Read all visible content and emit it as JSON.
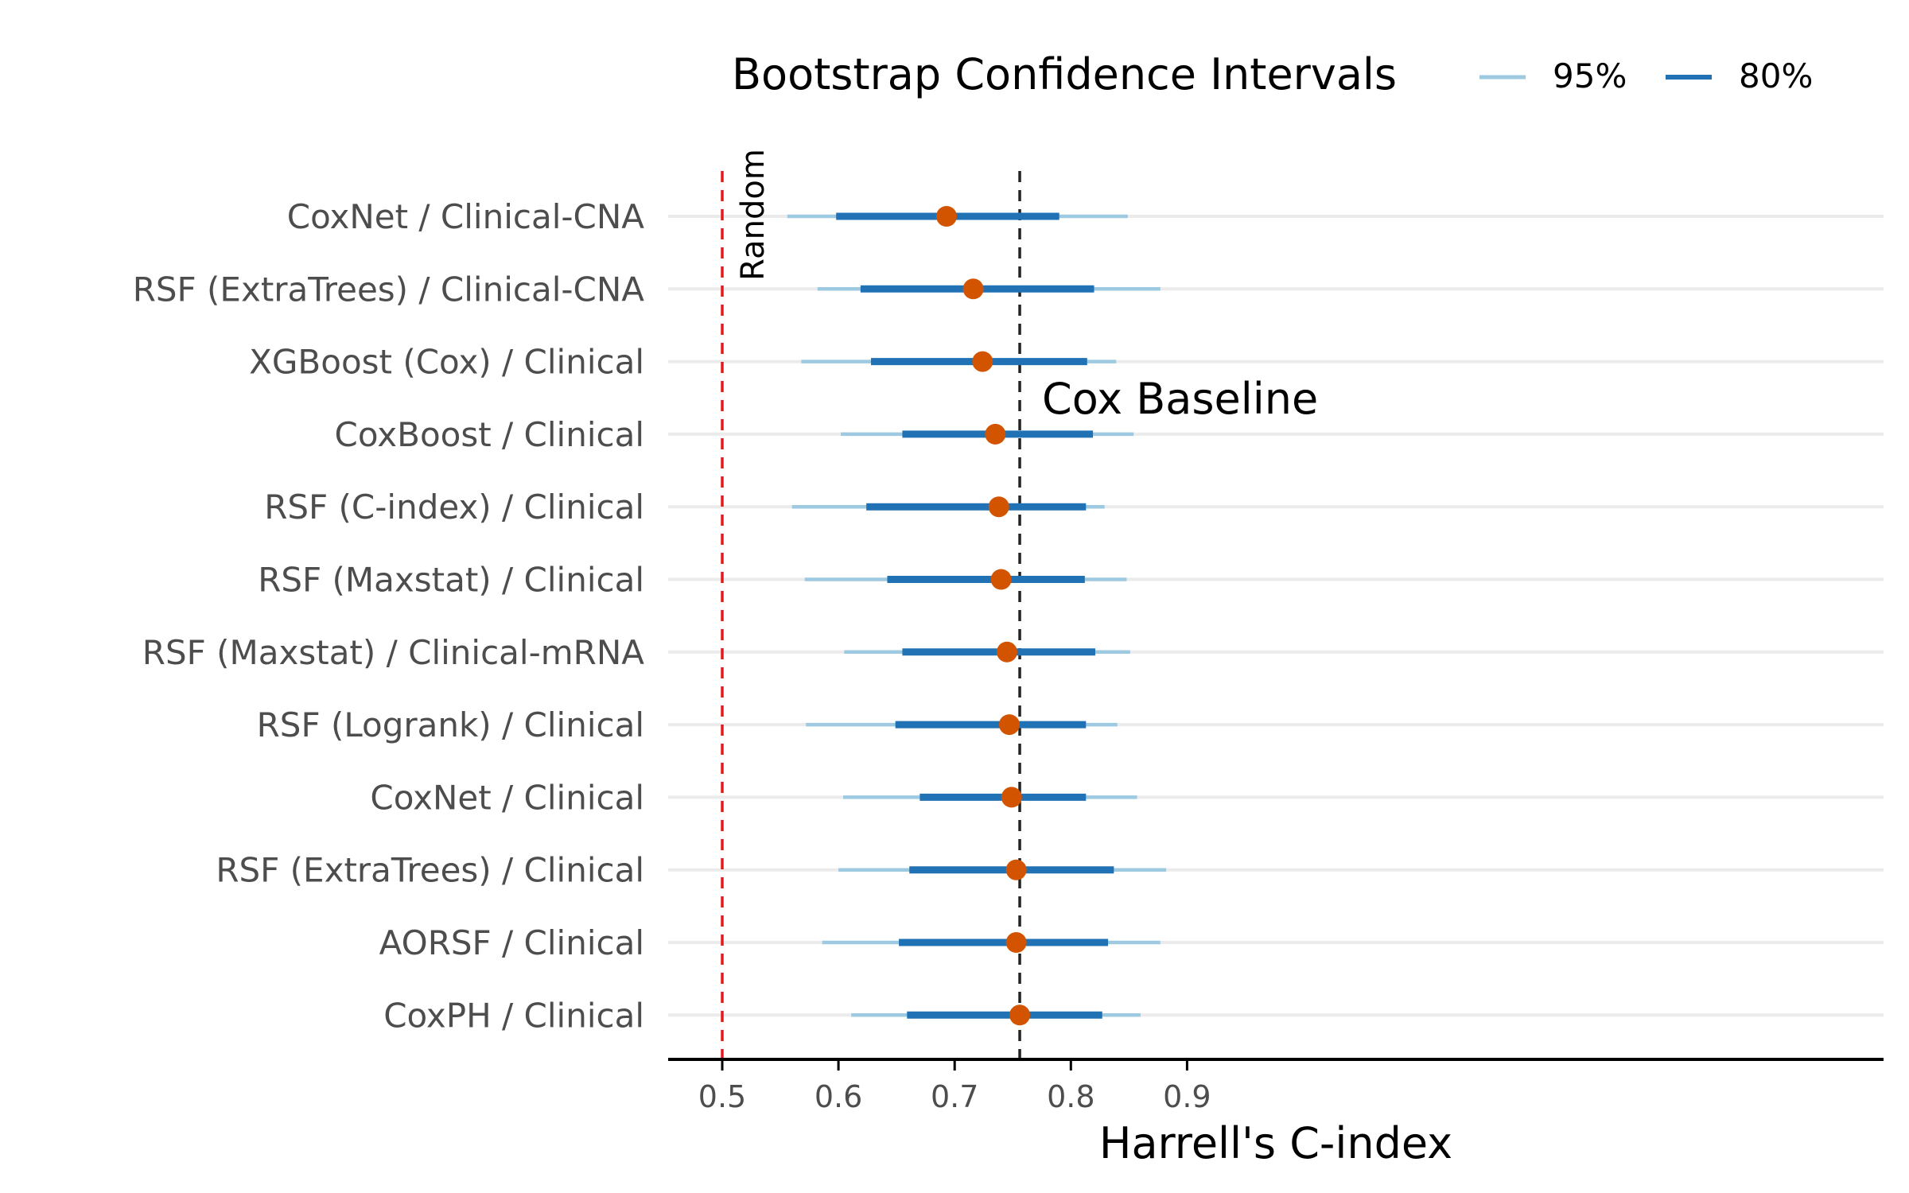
{
  "chart_data": {
    "type": "forest",
    "xlabel": "Harrell's C-index",
    "xlim": [
      0.48,
      0.9
    ],
    "xticks": [
      0.5,
      0.6,
      0.7,
      0.8,
      0.9
    ],
    "xtick_labels": [
      "0.5",
      "0.6",
      "0.7",
      "0.8",
      "0.9"
    ],
    "legend": {
      "title": "Bootstrap Confidence Intervals",
      "placement": "top",
      "entries": [
        {
          "label": "95%",
          "color": "#9ecae1"
        },
        {
          "label": "80%",
          "color": "#2171b5"
        }
      ]
    },
    "colors": {
      "ci95": "#9ecae1",
      "ci80": "#2171b5",
      "point": "#d35400",
      "random_line": "#e31a1c",
      "baseline_line": "#222222",
      "row_line": "#ebebeb"
    },
    "reference_lines": [
      {
        "name": "Random",
        "x": 0.5,
        "label": "Random"
      },
      {
        "name": "Cox Baseline",
        "x": 0.756,
        "label": "Cox Baseline"
      }
    ],
    "rows": [
      {
        "label": "CoxNet / Clinical-CNA",
        "estimate": 0.693,
        "ci80": [
          0.598,
          0.79
        ],
        "ci95": [
          0.556,
          0.849
        ]
      },
      {
        "label": "RSF (ExtraTrees) / Clinical-CNA",
        "estimate": 0.716,
        "ci80": [
          0.619,
          0.82
        ],
        "ci95": [
          0.582,
          0.877
        ]
      },
      {
        "label": "XGBoost (Cox) / Clinical",
        "estimate": 0.724,
        "ci80": [
          0.628,
          0.814
        ],
        "ci95": [
          0.568,
          0.839
        ]
      },
      {
        "label": "CoxBoost / Clinical",
        "estimate": 0.735,
        "ci80": [
          0.655,
          0.819
        ],
        "ci95": [
          0.602,
          0.854
        ]
      },
      {
        "label": "RSF (C-index) / Clinical",
        "estimate": 0.738,
        "ci80": [
          0.624,
          0.813
        ],
        "ci95": [
          0.56,
          0.829
        ]
      },
      {
        "label": "RSF (Maxstat) / Clinical",
        "estimate": 0.74,
        "ci80": [
          0.642,
          0.812
        ],
        "ci95": [
          0.571,
          0.848
        ]
      },
      {
        "label": "RSF (Maxstat) / Clinical-mRNA",
        "estimate": 0.745,
        "ci80": [
          0.655,
          0.821
        ],
        "ci95": [
          0.605,
          0.851
        ]
      },
      {
        "label": "RSF (Logrank) / Clinical",
        "estimate": 0.747,
        "ci80": [
          0.649,
          0.813
        ],
        "ci95": [
          0.572,
          0.84
        ]
      },
      {
        "label": "CoxNet / Clinical",
        "estimate": 0.749,
        "ci80": [
          0.67,
          0.813
        ],
        "ci95": [
          0.604,
          0.857
        ]
      },
      {
        "label": "RSF (ExtraTrees) / Clinical",
        "estimate": 0.753,
        "ci80": [
          0.661,
          0.837
        ],
        "ci95": [
          0.6,
          0.882
        ]
      },
      {
        "label": "AORSF / Clinical",
        "estimate": 0.753,
        "ci80": [
          0.652,
          0.832
        ],
        "ci95": [
          0.586,
          0.877
        ]
      },
      {
        "label": "CoxPH / Clinical",
        "estimate": 0.756,
        "ci80": [
          0.659,
          0.827
        ],
        "ci95": [
          0.611,
          0.86
        ]
      }
    ]
  }
}
